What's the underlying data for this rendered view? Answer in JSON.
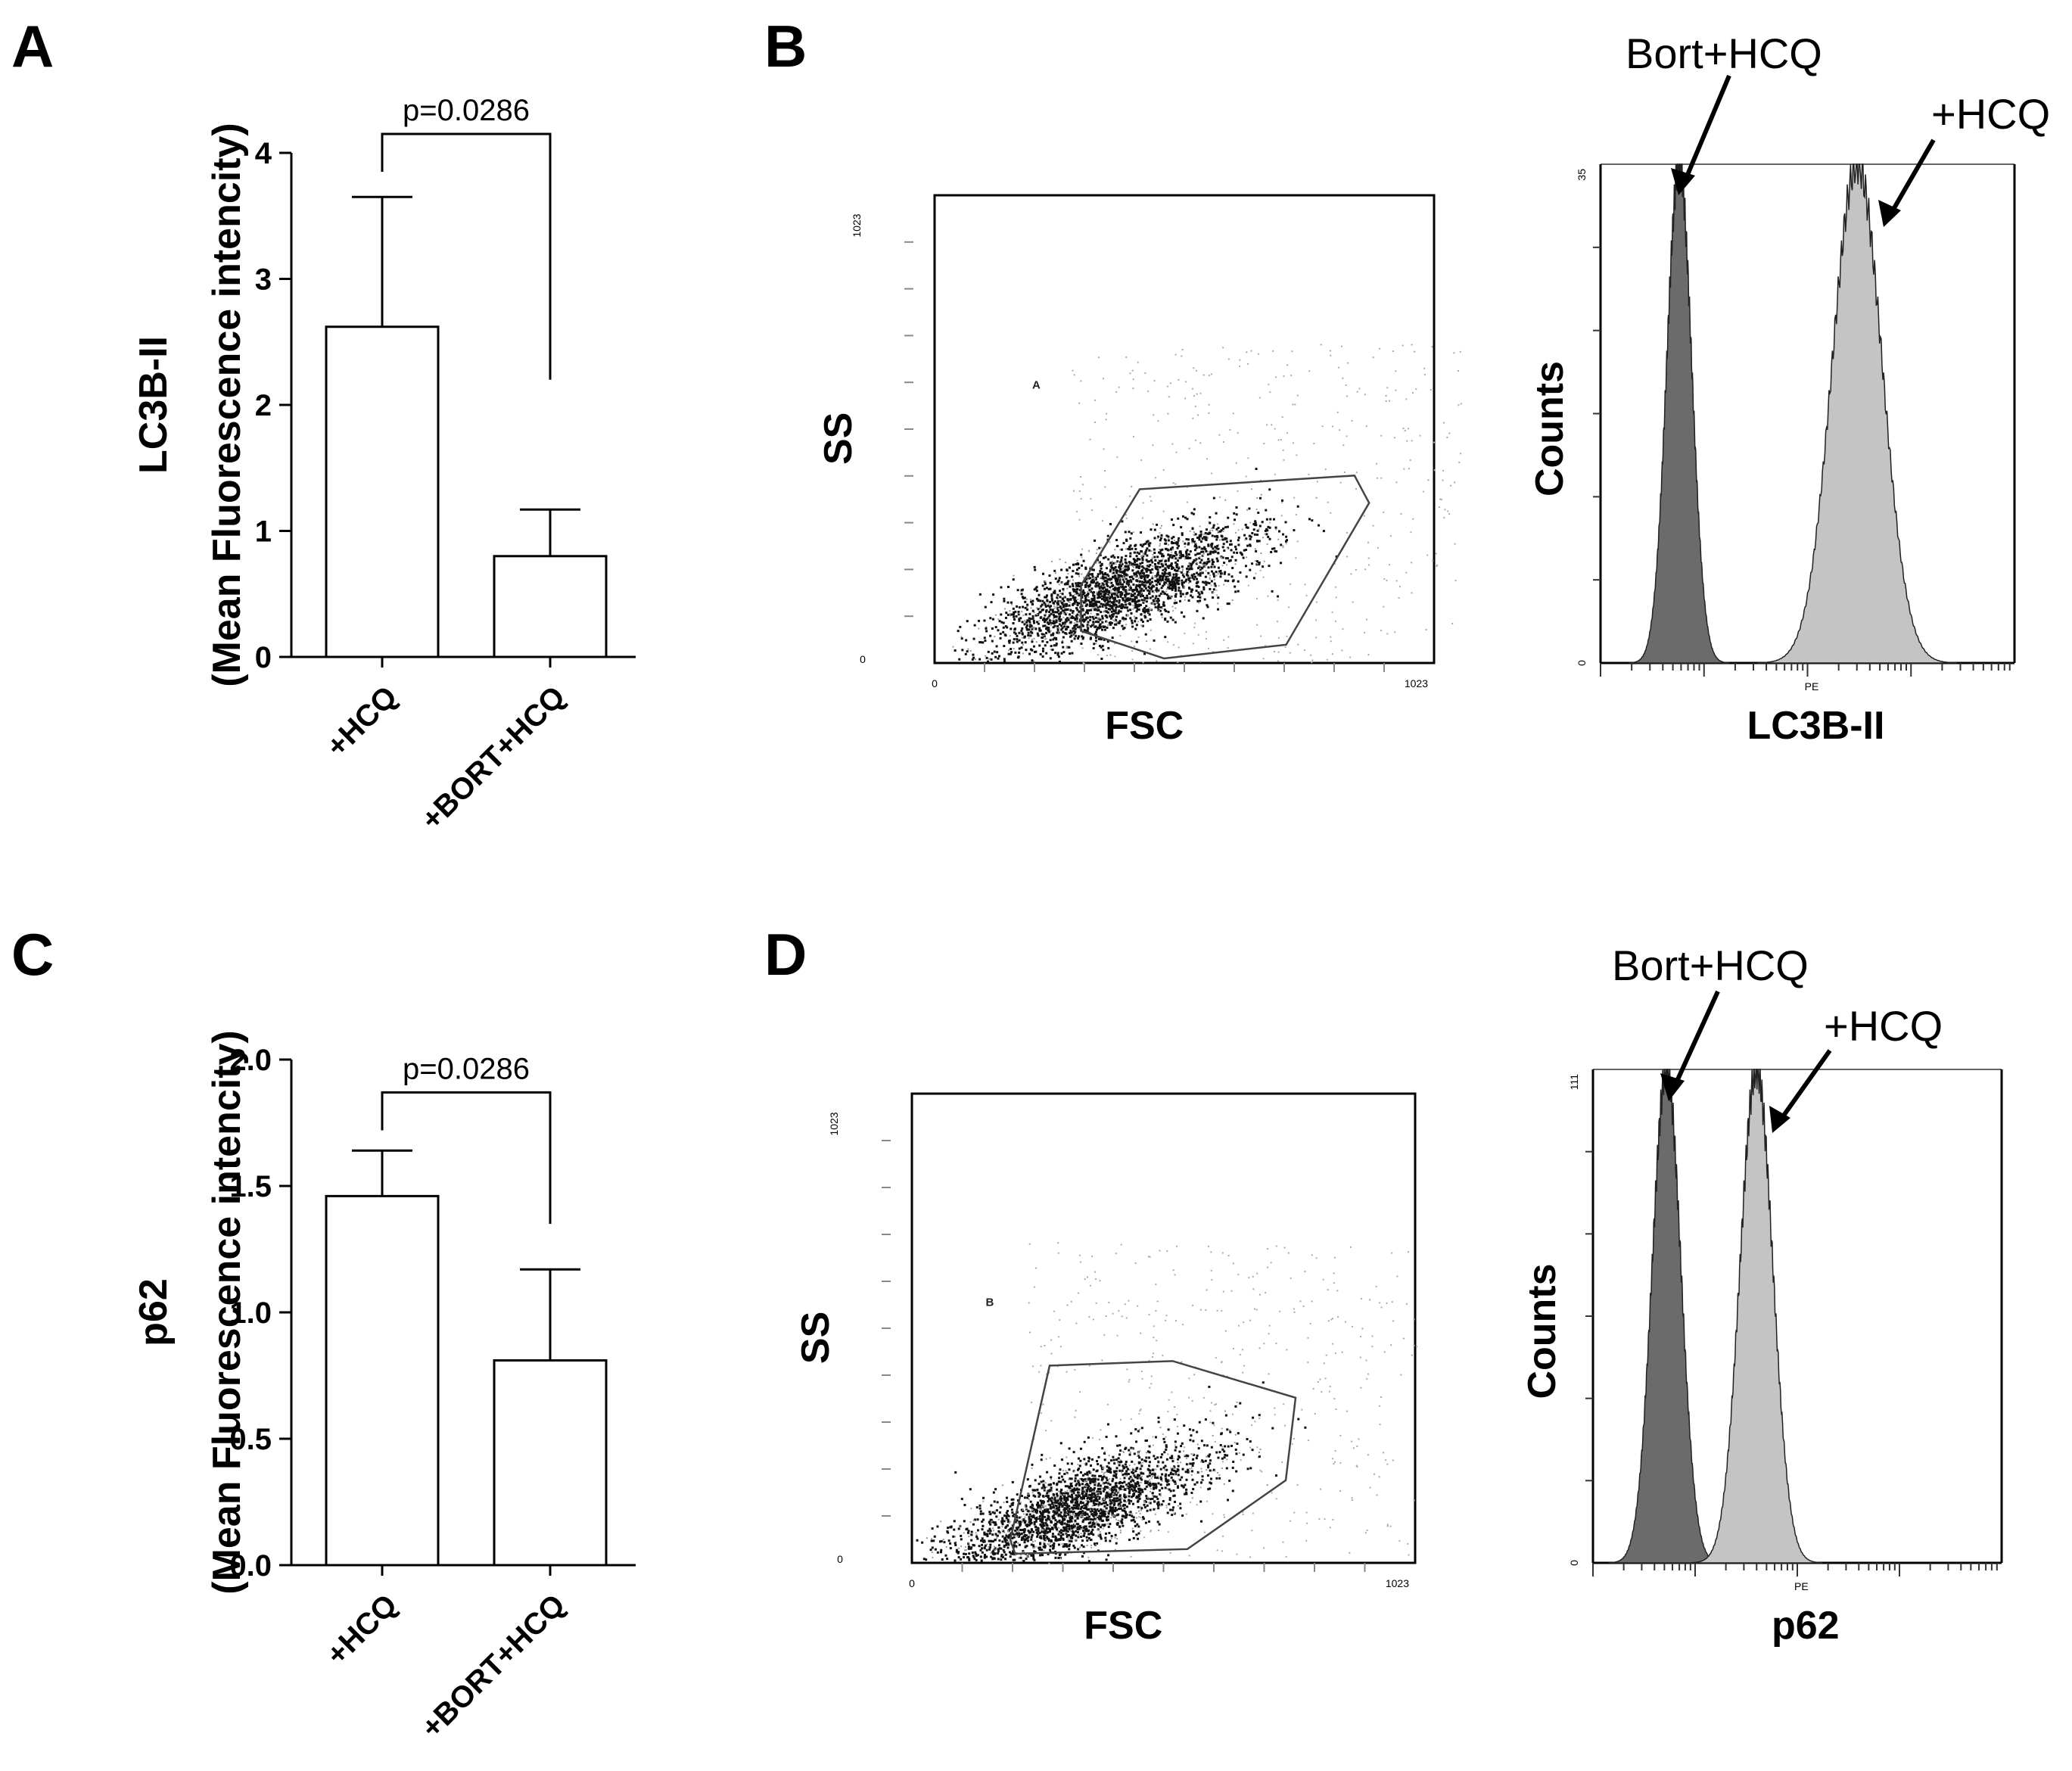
{
  "chart_data": [
    {
      "panel": "A",
      "type": "bar",
      "categories": [
        "+HCQ",
        "+BORT+HCQ"
      ],
      "values": [
        2.62,
        0.8
      ],
      "errors": [
        1.03,
        0.37
      ],
      "ylabel_line1": "LC3B-II",
      "ylabel_line2": "(Mean Fluorescence intencity)",
      "ylim": [
        0,
        4
      ],
      "yticks": [
        "0",
        "1",
        "2",
        "3",
        "4"
      ],
      "yticks_values": [
        0,
        1,
        2,
        3,
        4
      ],
      "bracket_y": 4.15,
      "bracket_left_y": 3.85,
      "bracket_right_y": 2.2,
      "pvalue": "p=0.0286"
    },
    {
      "panel": "B",
      "type": "scatter",
      "xlabel": "FSC",
      "ylabel": "SS",
      "gate_label": "A",
      "axis_min_label": "0",
      "axis_max_label": "1023",
      "xlim": [
        0,
        1023
      ],
      "ylim": [
        0,
        1023
      ],
      "cluster_center": [
        380,
        160
      ],
      "gate_polygon": [
        [
          300,
          170
        ],
        [
          420,
          380
        ],
        [
          860,
          410
        ],
        [
          890,
          350
        ],
        [
          720,
          40
        ],
        [
          470,
          10
        ],
        [
          300,
          70
        ]
      ]
    },
    {
      "panel": "B-hist",
      "type": "area",
      "xlabel": "LC3B-II",
      "xaxis_tiny": "PE",
      "ylabel": "Counts",
      "ymax_label": "35",
      "ymin_label": "0",
      "ylim": [
        0,
        35
      ],
      "series": [
        {
          "name": "Bort+HCQ",
          "peak_pos": 0.19,
          "width": 0.03,
          "height": 35,
          "color": "#6b6b6b"
        },
        {
          "name": "+HCQ",
          "peak_pos": 0.62,
          "width": 0.06,
          "height": 35,
          "color": "#c4c4c4"
        }
      ]
    },
    {
      "panel": "C",
      "type": "bar",
      "categories": [
        "+HCQ",
        "+BORT+HCQ"
      ],
      "values": [
        1.46,
        0.81
      ],
      "errors": [
        0.18,
        0.36
      ],
      "ylabel_line1": "p62",
      "ylabel_line2": "(Mean Fluorescence intencity)",
      "ylim": [
        0,
        2.0
      ],
      "yticks": [
        "0.0",
        "0.5",
        "1.0",
        "1.5",
        "2.0"
      ],
      "yticks_values": [
        0,
        0.5,
        1.0,
        1.5,
        2.0
      ],
      "bracket_y": 1.87,
      "bracket_left_y": 1.72,
      "bracket_right_y": 1.35,
      "pvalue": "p=0.0286"
    },
    {
      "panel": "D",
      "type": "scatter",
      "xlabel": "FSC",
      "ylabel": "SS",
      "gate_label": "B",
      "axis_min_label": "0",
      "axis_max_label": "1023",
      "xlim": [
        0,
        1023
      ],
      "ylim": [
        0,
        1023
      ],
      "cluster_center": [
        330,
        120
      ],
      "gate_polygon": [
        [
          200,
          50
        ],
        [
          280,
          430
        ],
        [
          530,
          440
        ],
        [
          780,
          360
        ],
        [
          760,
          180
        ],
        [
          560,
          30
        ],
        [
          210,
          20
        ]
      ]
    },
    {
      "panel": "D-hist",
      "type": "area",
      "xlabel": "p62",
      "xaxis_tiny": "PE",
      "ylabel": "Counts",
      "ymax_label": "111",
      "ymin_label": "0",
      "ylim": [
        0,
        111
      ],
      "series": [
        {
          "name": "Bort+HCQ",
          "peak_pos": 0.18,
          "width": 0.035,
          "height": 111,
          "color": "#6b6b6b"
        },
        {
          "name": "+HCQ",
          "peak_pos": 0.4,
          "width": 0.04,
          "height": 111,
          "color": "#c4c4c4"
        }
      ]
    }
  ],
  "panel_letters": {
    "a": "A",
    "b": "B",
    "c": "C",
    "d": "D"
  },
  "annotations": {
    "b_bort": "Bort+HCQ",
    "b_hcq": "+HCQ",
    "d_bort": "Bort+HCQ",
    "d_hcq": "+HCQ"
  }
}
